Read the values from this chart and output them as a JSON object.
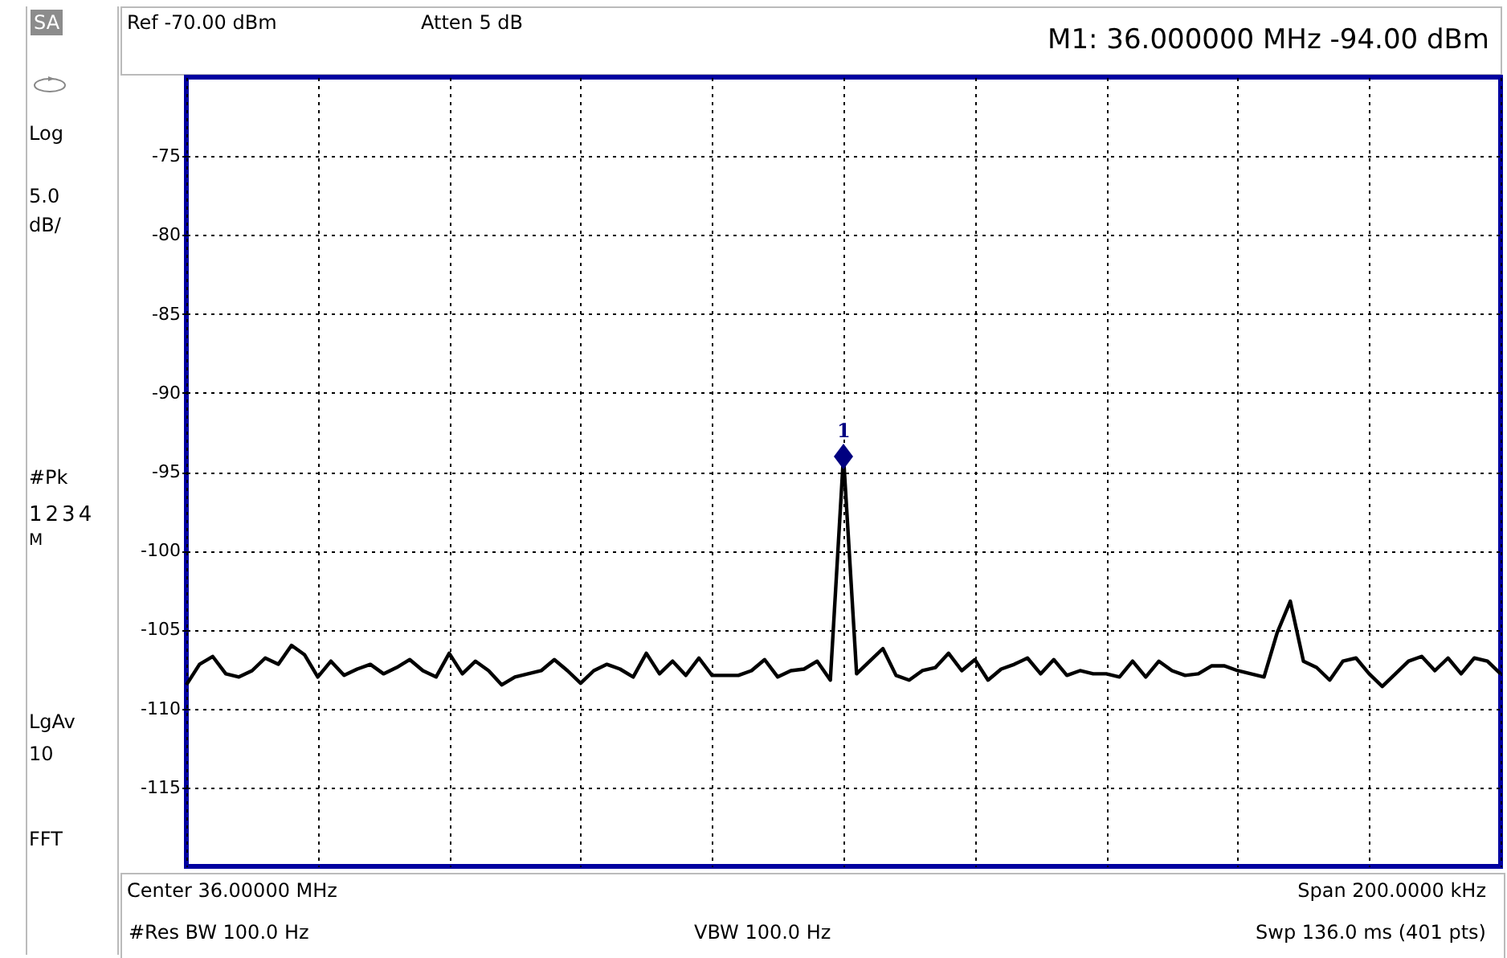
{
  "chart_data": {
    "type": "line",
    "annotations": [
      "SA",
      "Log",
      "5.0",
      "dB/",
      "#Pk",
      "1234",
      "M",
      "LgAv",
      "10",
      "FFT",
      "Ref -70.00 dBm",
      "Atten 5 dB",
      "M1:  36.000000 MHz  -94.00 dBm",
      "Center 36.00000 MHz",
      "Span 200.0000 kHz",
      "#Res BW 100.0  Hz",
      "VBW 100.0  Hz",
      "Swp 136.0 ms (401 pts)",
      {
        "text": "1",
        "y": -94
      }
    ],
    "categories": [
      null,
      null,
      null,
      null,
      null,
      null,
      null,
      null,
      null,
      null,
      null,
      null,
      null,
      null,
      null,
      null,
      null,
      null,
      null,
      null,
      null,
      null,
      null,
      null,
      null,
      null,
      null,
      null,
      null,
      null,
      null,
      null,
      null,
      null,
      null,
      null,
      null,
      null,
      null,
      null,
      null,
      null,
      null,
      null,
      null,
      null,
      null,
      null,
      null,
      null,
      null,
      null,
      null,
      null,
      null,
      null,
      null,
      null,
      null,
      null,
      null,
      null,
      null,
      null,
      null,
      null,
      null,
      null,
      null,
      null,
      null,
      null,
      null,
      null,
      null,
      null,
      null,
      null,
      null,
      null,
      null,
      null,
      null,
      null,
      null,
      null,
      null,
      null,
      null,
      null,
      null,
      null,
      null,
      null,
      null,
      null,
      null,
      null,
      null,
      null,
      null
    ],
    "series": [
      {
        "color": "#000000",
        "values": [
          -108.5,
          -107.2,
          -106.7,
          -107.8,
          -108.0,
          -107.6,
          -106.8,
          -107.2,
          -106.0,
          -106.6,
          -108.0,
          -107.0,
          -107.9,
          -107.5,
          -107.2,
          -107.8,
          -107.4,
          -106.9,
          -107.6,
          -108.0,
          -106.5,
          -107.8,
          -107.0,
          -107.6,
          -108.5,
          -108.0,
          -107.8,
          -107.6,
          -106.9,
          -107.6,
          -108.4,
          -107.6,
          -107.2,
          -107.5,
          -108.0,
          -106.5,
          -107.8,
          -107.0,
          -107.9,
          -106.8,
          -107.9,
          -107.9,
          -107.9,
          -107.6,
          -106.9,
          -108.0,
          -107.6,
          -107.5,
          -107.0,
          -108.2,
          -94,
          -107.8,
          -107.0,
          -106.2,
          -107.9,
          -108.2,
          -107.6,
          -107.4,
          -106.5,
          -107.6,
          -106.9,
          -108.2,
          -107.5,
          -107.2,
          -106.8,
          -107.8,
          -106.9,
          -107.9,
          -107.6,
          -107.8,
          -107.8,
          -108.0,
          -107.0,
          -108.0,
          -107.0,
          -107.6,
          -107.9,
          -107.8,
          -107.3,
          -107.3,
          -107.6,
          -107.8,
          -108.0,
          -105.2,
          -103.2,
          -107.0,
          -107.4,
          -108.2,
          -107.0,
          -106.8,
          -107.8,
          -108.6,
          -107.8,
          -107.0,
          -106.7,
          -107.6,
          -106.8,
          -107.8,
          -106.8,
          -107.0,
          -107.8
        ]
      }
    ],
    "ylim": [
      -120,
      -70
    ],
    "yticks": [
      -75,
      -80,
      -85,
      -90,
      -95,
      -100,
      -105,
      -110,
      -115
    ],
    "tick_labels": "y",
    "grid": true,
    "line_style": "solid"
  }
}
